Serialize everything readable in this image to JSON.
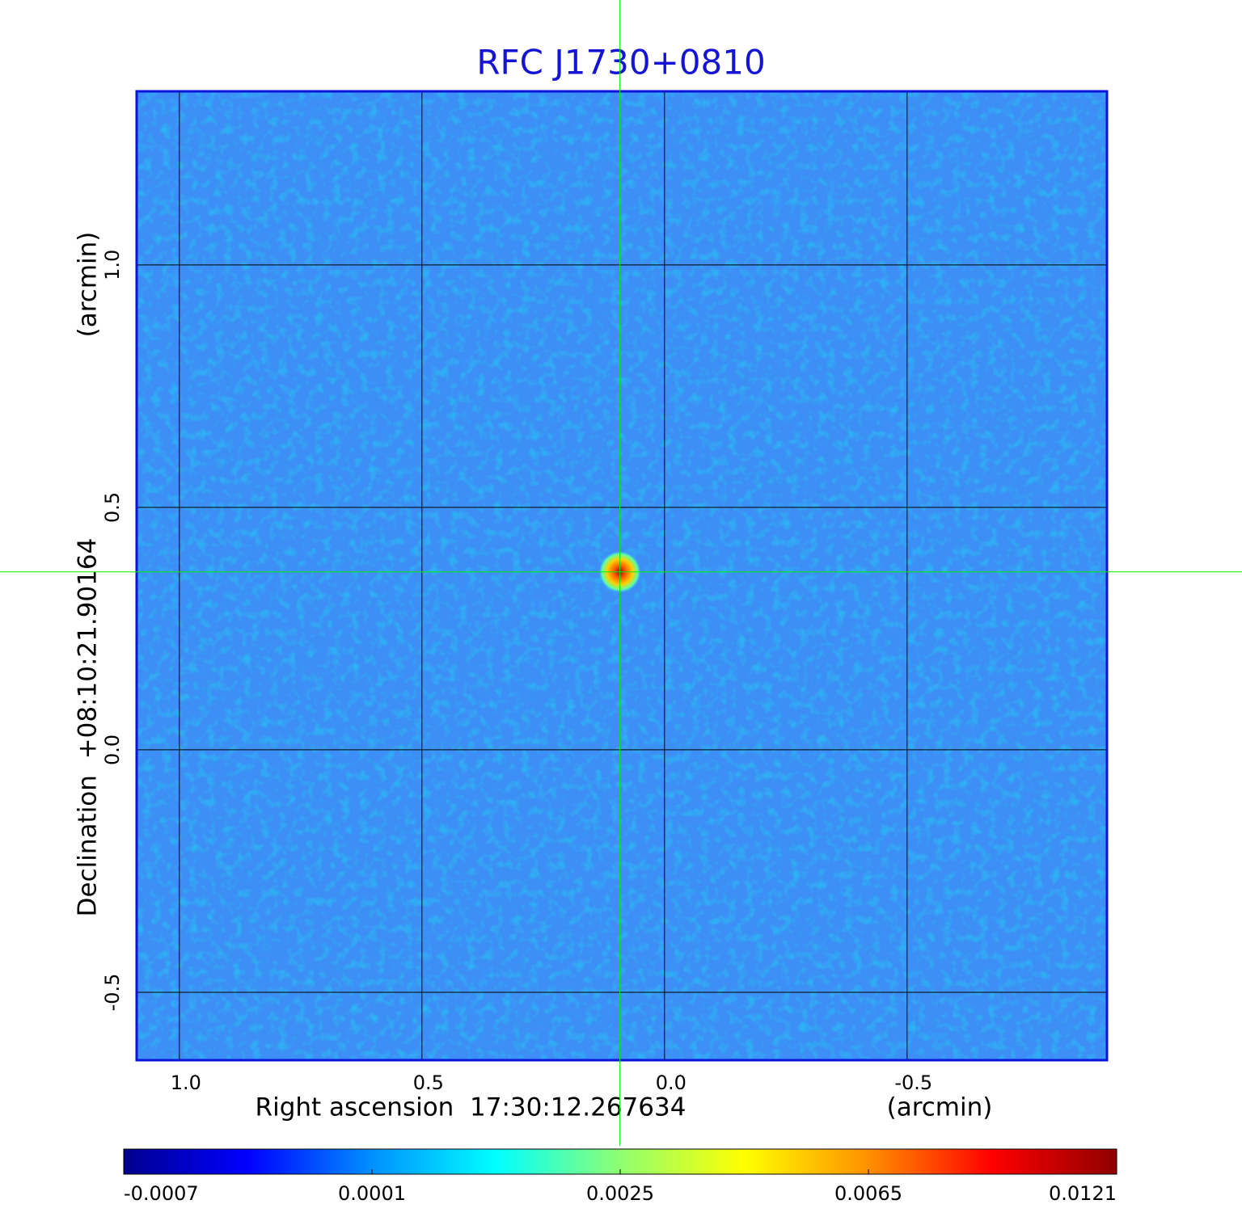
{
  "chart_data": {
    "type": "image",
    "title": "RFC J1730+0810",
    "x_label": "Right ascension  17:30:12.267634",
    "x_unit": "(arcmin)",
    "y_label": "Declination  +08:10:21.90164",
    "y_unit": "(arcmin)",
    "xlim": [
      1.088,
      -0.912
    ],
    "ylim": [
      -0.64,
      1.358
    ],
    "xticks": [
      {
        "value": 1,
        "label": "1.0"
      },
      0.5,
      {
        "value": 0,
        "label": "0.0"
      },
      -0.5
    ],
    "yticks": [
      -0.5,
      {
        "value": 0,
        "label": "0.0"
      },
      0.5,
      {
        "value": 1,
        "label": "1.0"
      }
    ],
    "grid": true,
    "frame_color": "#0a14d8",
    "background_color": "#3d8ef5",
    "crosshair": {
      "x": 0.092,
      "y": 0.367,
      "color": "#00ee00"
    },
    "peak": {
      "x": 0.092,
      "y": 0.367,
      "value": 0.0121
    },
    "colorbar": {
      "ticks": [
        -0.0007,
        0.0001,
        0.0025,
        0.0065,
        0.0121
      ],
      "colors": [
        "#00008f",
        "#0000ff",
        "#0090ff",
        "#00ffff",
        "#90ff70",
        "#ffff00",
        "#ff9000",
        "#ff0000",
        "#8f0000"
      ]
    }
  }
}
